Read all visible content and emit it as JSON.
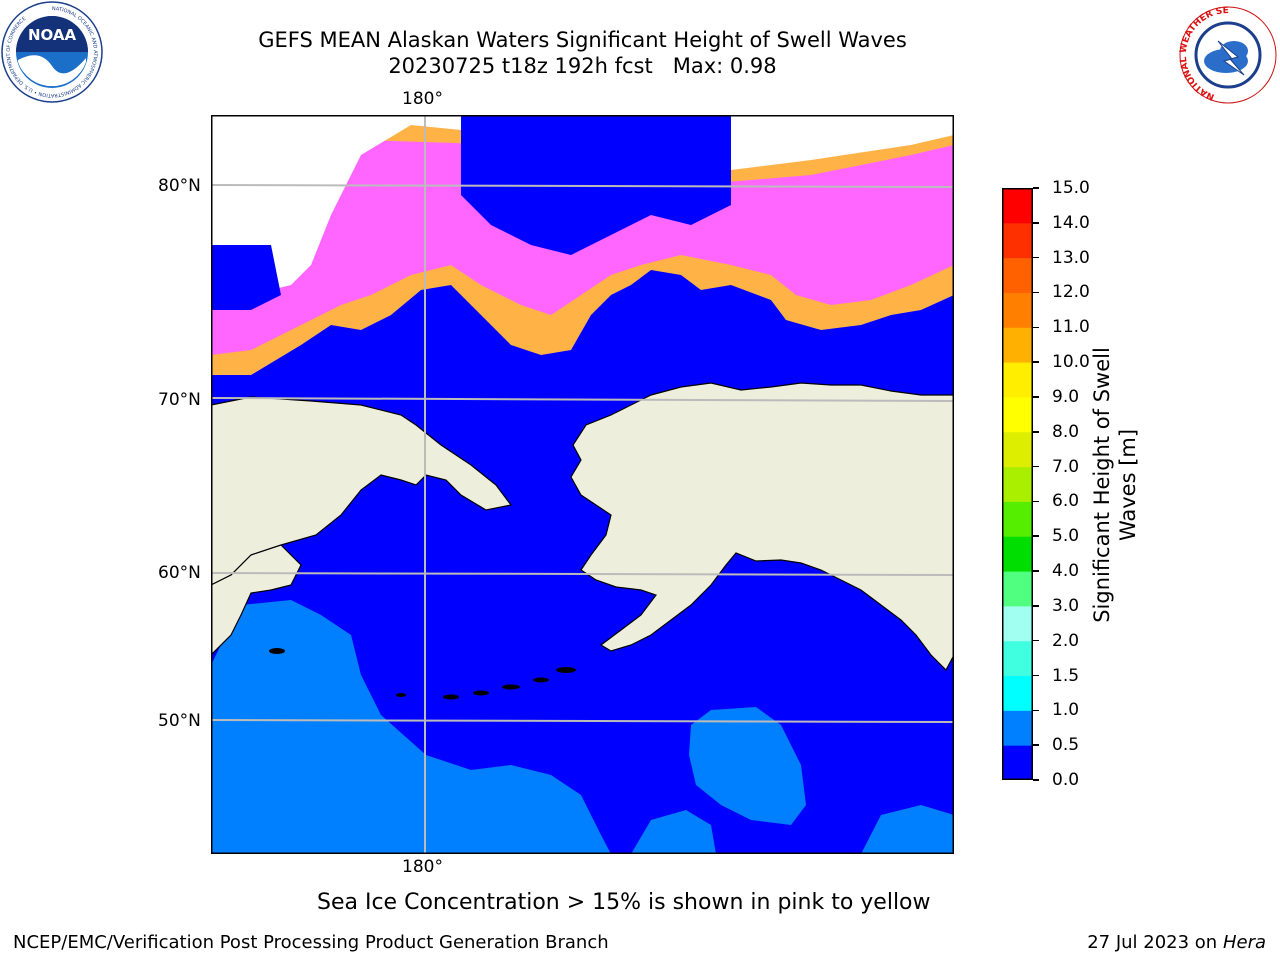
{
  "title": {
    "line1": "GEFS MEAN Alaskan Waters Significant Height of Swell Waves",
    "line2": "20230725 t18z 192h fcst   Max: 0.98"
  },
  "logos": {
    "left": {
      "icon": "noaa-logo",
      "text": "NOAA",
      "ring_text": "NATIONAL OCEANIC AND ATMOSPHERIC ADMINISTRATION • U.S. DEPARTMENT OF COMMERCE"
    },
    "right": {
      "icon": "nws-logo",
      "ring_text": "NATIONAL WEATHER SERVICE"
    }
  },
  "map": {
    "lon_label": "180°",
    "lat_labels": [
      "80°N",
      "70°N",
      "60°N",
      "50°N"
    ],
    "colors": {
      "ocean_low": "#0000FF",
      "ocean_mid": "#0080FF",
      "land": "#EEEEDD",
      "ice_pink": "#FF66FF",
      "ice_orange": "#FFB347",
      "ice_yellow": "#FFE033",
      "gridline": "#BBBBBB"
    }
  },
  "colorbar": {
    "ticks": [
      "15.0",
      "14.0",
      "13.0",
      "12.0",
      "11.0",
      "10.0",
      "9.0",
      "8.0",
      "7.0",
      "6.0",
      "5.0",
      "4.0",
      "3.0",
      "2.0",
      "1.5",
      "1.0",
      "0.5",
      "0.0"
    ],
    "colors": [
      "#0000FF",
      "#0080FF",
      "#00FFFF",
      "#40FFE0",
      "#A0FFF0",
      "#50FF80",
      "#00DD00",
      "#55EE00",
      "#AAEE00",
      "#DDEE00",
      "#FFFF00",
      "#FFEE00",
      "#FFB000",
      "#FF8000",
      "#FF6000",
      "#FF3000",
      "#FF0000"
    ],
    "label": "Significant Height of Swell\nWaves [m]"
  },
  "footer": {
    "note": "Sea Ice Concentration > 15% is shown in pink to yellow",
    "credit": "NCEP/EMC/Verification Post Processing Product Generation Branch",
    "date": "27 Jul 2023 on ",
    "machine": "Hera"
  }
}
